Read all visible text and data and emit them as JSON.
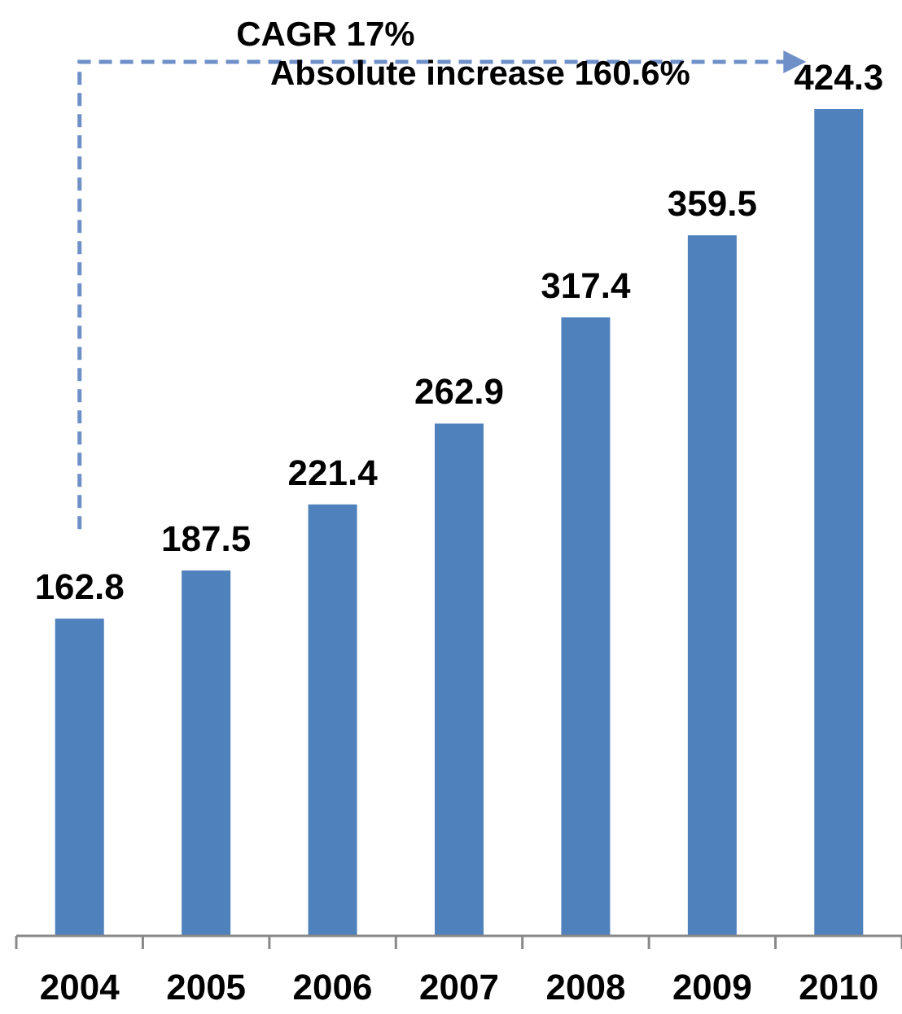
{
  "chart_data": {
    "type": "bar",
    "categories": [
      "2004",
      "2005",
      "2006",
      "2007",
      "2008",
      "2009",
      "2010"
    ],
    "values": [
      162.8,
      187.5,
      221.4,
      262.9,
      317.4,
      359.5,
      424.3
    ],
    "color": "#4f81bd",
    "data_labels": true,
    "annotations": [
      "CAGR 17%",
      "Absolute increase 160.6%"
    ]
  }
}
